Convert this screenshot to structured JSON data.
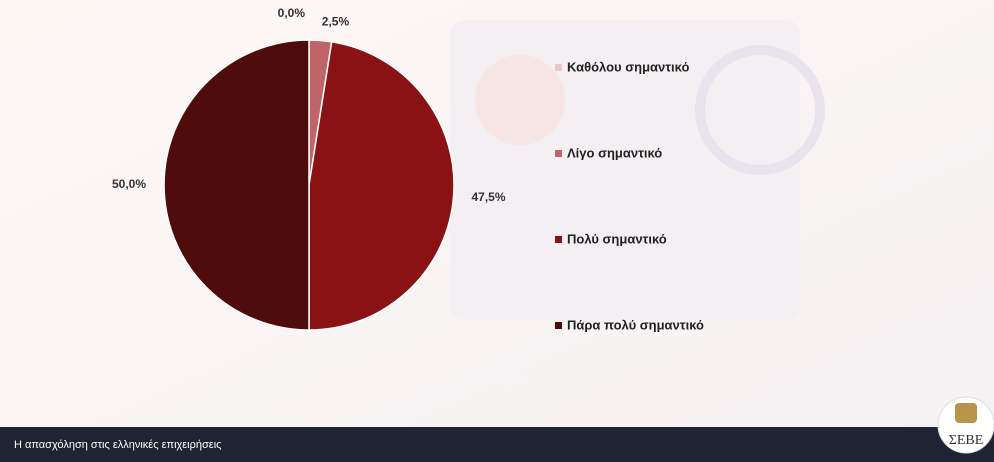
{
  "chart_data": {
    "type": "pie",
    "categories": [
      "Καθόλου σημαντικό",
      "Λίγο σημαντικό",
      "Πολύ σημαντικό",
      "Πάρα πολύ σημαντικό"
    ],
    "values": [
      0,
      2.5,
      47.5,
      50
    ],
    "value_labels": [
      "0,0%",
      "2,5%",
      "47,5%",
      "50,0%"
    ],
    "colors": [
      "#e8c9cb",
      "#c0646a",
      "#8a1215",
      "#4e0c0d"
    ]
  },
  "footer": {
    "text": "Η απασχόληση στις ελληνικές επιχειρήσεις"
  },
  "logo": {
    "text": "ΣΕΒΕ"
  }
}
